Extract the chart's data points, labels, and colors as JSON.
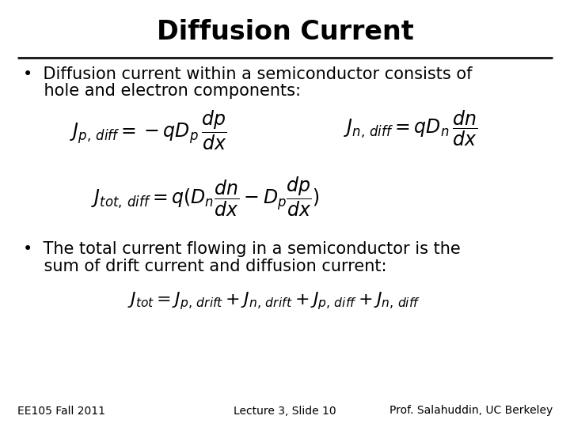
{
  "title": "Diffusion Current",
  "title_fontsize": 24,
  "title_fontweight": "bold",
  "bg_color": "#ffffff",
  "text_color": "#000000",
  "bullet1_line1": "•  Diffusion current within a semiconductor consists of",
  "bullet1_line2": "    hole and electron components:",
  "bullet2_line1": "•  The total current flowing in a semiconductor is the",
  "bullet2_line2": "    sum of drift current and diffusion current:",
  "eq1_left": "$J_{p,\\,diff} = -qD_p\\,\\dfrac{dp}{dx}$",
  "eq1_right": "$J_{n,\\,diff} = qD_n\\,\\dfrac{dn}{dx}$",
  "eq2": "$J_{tot,\\,diff} = q(D_n\\dfrac{dn}{dx}-D_p\\dfrac{dp}{dx})$",
  "eq3": "$J_{tot} = J_{p,\\,drift} + J_{n,\\,drift} + J_{p,\\,diff} + J_{n,\\,diff}$",
  "footer_left": "EE105 Fall 2011",
  "footer_center": "Lecture 3, Slide 10",
  "footer_right": "Prof. Salahuddin, UC Berkeley",
  "footer_fontsize": 10,
  "bullet_fontsize": 15,
  "eq_fontsize": 17,
  "eq3_fontsize": 16
}
